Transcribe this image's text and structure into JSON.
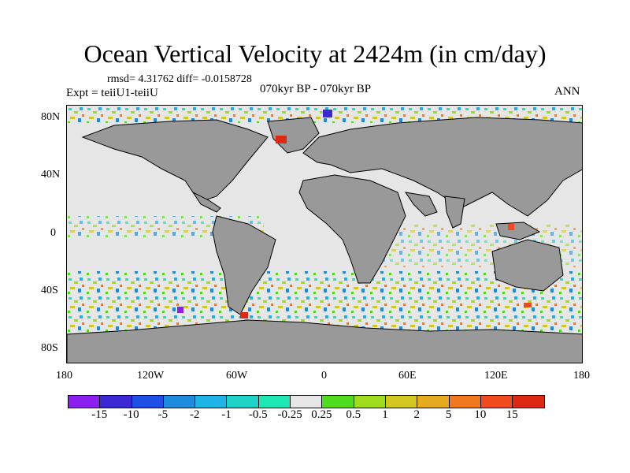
{
  "title": "Ocean Vertical Velocity at 2424m (in cm/day)",
  "stats": "rmsd= 4.31762 diff= -0.0158728",
  "expt": "Expt = teiiU1-teiiU",
  "period": "070kyr BP - 070kyr BP",
  "season": "ANN",
  "lat_labels": [
    "80N",
    "40N",
    "0",
    "40S",
    "80S"
  ],
  "lon_labels": [
    "180",
    "120W",
    "60W",
    "0",
    "60E",
    "120E",
    "180"
  ],
  "colorbar": {
    "labels": [
      "-15",
      "-10",
      "-5",
      "-2",
      "-1",
      "-0.5",
      "-0.25",
      "0.25",
      "0.5",
      "1",
      "2",
      "5",
      "10",
      "15"
    ],
    "colors": [
      "#8c1ef0",
      "#3c28d2",
      "#1e50e6",
      "#1e8cdc",
      "#1eb4e6",
      "#1ed2c8",
      "#1ee6b4",
      "#e6e6e6",
      "#50dc1e",
      "#a0dc1e",
      "#d2c81e",
      "#e6aa1e",
      "#f0781e",
      "#f04b1e",
      "#dc2814"
    ]
  },
  "colors": {
    "land": "#999999",
    "no_signal": "#e6e6e6",
    "coast": "#000000"
  }
}
